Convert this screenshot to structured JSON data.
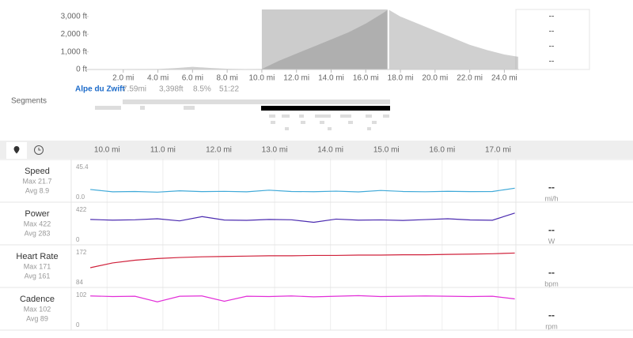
{
  "elevation": {
    "xlim": [
      0,
      24.85
    ],
    "ylim": [
      0,
      3400
    ],
    "yticks": [
      {
        "value": 0,
        "label": "0 ft"
      },
      {
        "value": 1000,
        "label": "1,000 ft"
      },
      {
        "value": 2000,
        "label": "2,000 ft"
      },
      {
        "value": 3000,
        "label": "3,000 ft"
      }
    ],
    "xticks": [
      {
        "value": 2,
        "label": "2.0 mi"
      },
      {
        "value": 4,
        "label": "4.0 mi"
      },
      {
        "value": 6,
        "label": "6.0 mi"
      },
      {
        "value": 8,
        "label": "8.0 mi"
      },
      {
        "value": 10,
        "label": "10.0 mi"
      },
      {
        "value": 12,
        "label": "12.0 mi"
      },
      {
        "value": 14,
        "label": "14.0 mi"
      },
      {
        "value": 16,
        "label": "16.0 mi"
      },
      {
        "value": 18,
        "label": "18.0 mi"
      },
      {
        "value": 20,
        "label": "20.0 mi"
      },
      {
        "value": 22,
        "label": "22.0 mi"
      },
      {
        "value": 24,
        "label": "24.0 mi"
      }
    ],
    "x": [
      0,
      2,
      4,
      5,
      6,
      7,
      8,
      9,
      10,
      11,
      12,
      13,
      14,
      15,
      16,
      17,
      17.3,
      18,
      19,
      20,
      21,
      22,
      23,
      24,
      24.8
    ],
    "values": [
      10,
      20,
      30,
      80,
      150,
      90,
      40,
      20,
      30,
      500,
      900,
      1300,
      1700,
      2100,
      2600,
      3200,
      3400,
      3000,
      2600,
      2200,
      1800,
      1400,
      1100,
      850,
      720
    ],
    "selection": [
      10,
      17.3
    ],
    "summary": [
      "--",
      "--",
      "--",
      "--"
    ]
  },
  "segments": {
    "label": "Segments",
    "name": "Alpe du Zwift",
    "stats": [
      "7.59mi",
      "3,398ft",
      "8.5%",
      "51:22"
    ]
  },
  "streams": {
    "xlim": [
      9.67,
      17.32
    ],
    "xticks": [
      {
        "value": 10,
        "label": "10.0 mi"
      },
      {
        "value": 11,
        "label": "11.0 mi"
      },
      {
        "value": 12,
        "label": "12.0 mi"
      },
      {
        "value": 13,
        "label": "13.0 mi"
      },
      {
        "value": 14,
        "label": "14.0 mi"
      },
      {
        "value": 15,
        "label": "15.0 mi"
      },
      {
        "value": 16,
        "label": "16.0 mi"
      },
      {
        "value": 17,
        "label": "17.0 mi"
      }
    ],
    "x": [
      9.7,
      10.1,
      10.5,
      10.9,
      11.3,
      11.7,
      12.1,
      12.5,
      12.9,
      13.3,
      13.7,
      14.1,
      14.5,
      14.9,
      15.3,
      15.7,
      16.1,
      16.5,
      16.9,
      17.3
    ],
    "rows": [
      {
        "name": "Speed",
        "stats": [
          "Max 21.7",
          "Avg 8.9"
        ],
        "color": "#3fa9d8",
        "ylim": [
          0,
          45.4
        ],
        "yticks": [
          {
            "value": 0,
            "label": "0.0"
          },
          45.4
        ],
        "current": "--",
        "unit": "mi/h",
        "values": [
          12,
          8.5,
          9,
          8,
          10,
          8.8,
          9.2,
          8.5,
          11,
          9,
          8.7,
          9.5,
          8.4,
          10.5,
          9,
          8.6,
          9.3,
          8.8,
          9,
          14
        ]
      },
      {
        "name": "Power",
        "stats": [
          "Max 422",
          "Avg 283"
        ],
        "color": "#4b2bb0",
        "ylim": [
          0,
          422
        ],
        "yticks": [
          0,
          422
        ],
        "current": "--",
        "unit": "W",
        "values": [
          290,
          280,
          285,
          300,
          270,
          330,
          282,
          278,
          290,
          285,
          250,
          295,
          280,
          284,
          276,
          288,
          300,
          283,
          279,
          380
        ]
      },
      {
        "name": "Heart Rate",
        "stats": [
          "Max 171",
          "Avg 161"
        ],
        "color": "#d0213b",
        "ylim": [
          84,
          172
        ],
        "yticks": [
          84,
          172
        ],
        "current": "--",
        "unit": "bpm",
        "values": [
          128,
          142,
          150,
          155,
          158,
          160,
          161,
          162,
          163,
          163,
          164,
          164,
          165,
          165,
          166,
          166,
          167,
          168,
          169,
          171
        ]
      },
      {
        "name": "Cadence",
        "stats": [
          "Max 102",
          "Avg 89"
        ],
        "color": "#e22ed8",
        "ylim": [
          0,
          102
        ],
        "yticks": [
          0,
          102
        ],
        "current": "--",
        "unit": "rpm",
        "values": [
          100,
          98,
          99,
          80,
          99,
          100,
          82,
          99,
          98,
          100,
          97,
          99,
          101,
          98,
          99,
          100,
          99,
          98,
          99,
          90
        ]
      }
    ]
  }
}
